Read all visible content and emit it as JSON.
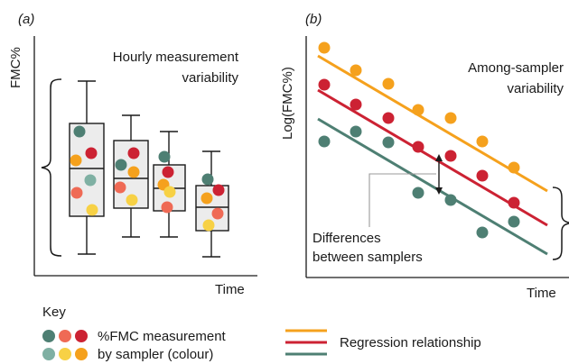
{
  "panel_a": {
    "label": "(a)",
    "y_axis_label": "FMC%",
    "x_axis_label": "Time",
    "annotation_line1": "Hourly measurement",
    "annotation_line2": "variability"
  },
  "panel_b": {
    "label": "(b)",
    "y_axis_label": "Log(FMC%)",
    "x_axis_label": "Time",
    "annotation_line1": "Among-sampler",
    "annotation_line2": "variability",
    "differences_line1": "Differences",
    "differences_line2": "between samplers"
  },
  "key": {
    "title": "Key",
    "measurement_line1": "%FMC measurement",
    "measurement_line2": "by sampler (colour)",
    "regression_label": "Regression relationship"
  },
  "colors": {
    "teal": "#4e7f73",
    "salmon": "#ef6a55",
    "red": "#cc2233",
    "light_teal": "#7fb0a3",
    "yellow": "#f7d145",
    "orange": "#f5a11d",
    "box_fill": "#ececec",
    "axis": "#1a1a1a"
  }
}
